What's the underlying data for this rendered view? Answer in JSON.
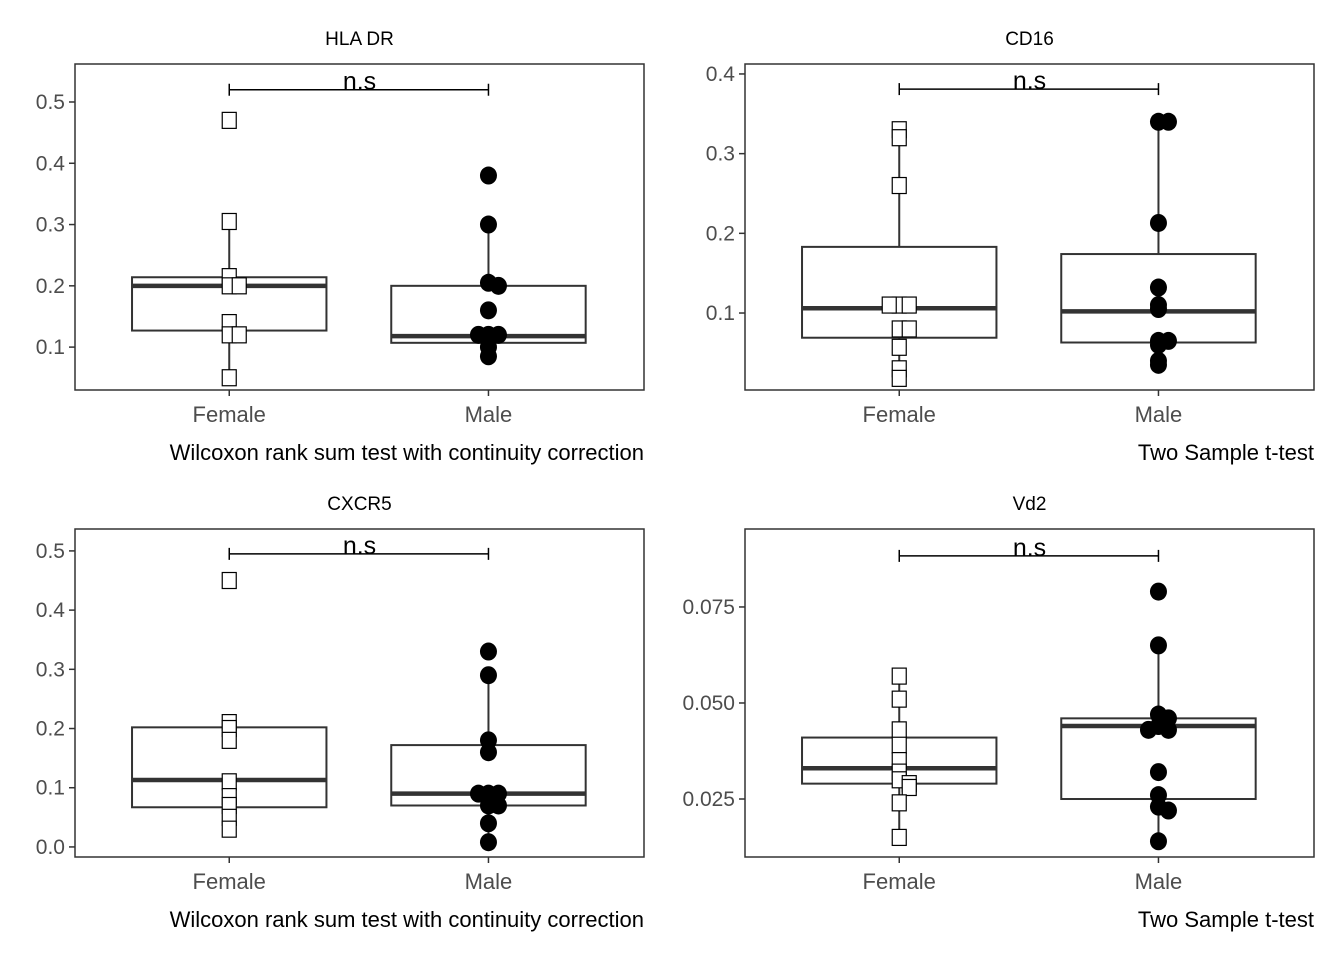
{
  "chart_data": [
    {
      "type": "box",
      "title": "HLA DR",
      "categories": [
        "Female",
        "Male"
      ],
      "ylim": [
        0.03,
        0.562
      ],
      "yticks": [
        0.1,
        0.2,
        0.3,
        0.4,
        0.5
      ],
      "ytick_labels": [
        "0.1",
        "0.2",
        "0.3",
        "0.4",
        "0.5"
      ],
      "test_label": "Wilcoxon rank sum test with continuity correction",
      "significance": {
        "label": "n.s",
        "y": 0.52
      },
      "series": [
        {
          "name": "Female",
          "shape": "square",
          "q1": 0.127,
          "median": 0.2,
          "q3": 0.214,
          "values": [
            0.47,
            0.305,
            0.215,
            0.2,
            0.2,
            0.14,
            0.12,
            0.12,
            0.05
          ]
        },
        {
          "name": "Male",
          "shape": "circle",
          "q1": 0.107,
          "median": 0.118,
          "q3": 0.2,
          "values": [
            0.38,
            0.3,
            0.205,
            0.2,
            0.16,
            0.12,
            0.12,
            0.12,
            0.1,
            0.085
          ]
        }
      ]
    },
    {
      "type": "box",
      "title": "CD16",
      "categories": [
        "Female",
        "Male"
      ],
      "ylim": [
        0.0034,
        0.4125
      ],
      "yticks": [
        0.1,
        0.2,
        0.3,
        0.4
      ],
      "ytick_labels": [
        "0.1",
        "0.2",
        "0.3",
        "0.4"
      ],
      "test_label": "Two Sample t-test",
      "significance": {
        "label": "n.s",
        "y": 0.381
      },
      "series": [
        {
          "name": "Female",
          "shape": "square",
          "q1": 0.069,
          "median": 0.106,
          "q3": 0.183,
          "values": [
            0.33,
            0.32,
            0.26,
            0.11,
            0.11,
            0.11,
            0.08,
            0.08,
            0.057,
            0.03,
            0.018
          ]
        },
        {
          "name": "Male",
          "shape": "circle",
          "q1": 0.063,
          "median": 0.102,
          "q3": 0.174,
          "values": [
            0.34,
            0.34,
            0.213,
            0.132,
            0.11,
            0.105,
            0.065,
            0.065,
            0.06,
            0.04,
            0.035
          ]
        }
      ]
    },
    {
      "type": "box",
      "title": "CXCR5",
      "categories": [
        "Female",
        "Male"
      ],
      "ylim": [
        -0.017,
        0.537
      ],
      "yticks": [
        0.0,
        0.1,
        0.2,
        0.3,
        0.4,
        0.5
      ],
      "ytick_labels": [
        "0.0",
        "0.1",
        "0.2",
        "0.3",
        "0.4",
        "0.5"
      ],
      "test_label": "Wilcoxon rank sum test with continuity correction",
      "significance": {
        "label": "n.s",
        "y": 0.495
      },
      "series": [
        {
          "name": "Female",
          "shape": "square",
          "q1": 0.067,
          "median": 0.113,
          "q3": 0.202,
          "values": [
            0.45,
            0.21,
            0.2,
            0.18,
            0.11,
            0.085,
            0.07,
            0.05,
            0.03
          ]
        },
        {
          "name": "Male",
          "shape": "circle",
          "q1": 0.07,
          "median": 0.09,
          "q3": 0.172,
          "values": [
            0.33,
            0.29,
            0.18,
            0.16,
            0.09,
            0.09,
            0.09,
            0.08,
            0.07,
            0.07,
            0.04,
            0.008
          ]
        }
      ]
    },
    {
      "type": "box",
      "title": "Vd2",
      "categories": [
        "Female",
        "Male"
      ],
      "ylim": [
        0.0099,
        0.0953
      ],
      "yticks": [
        0.025,
        0.05,
        0.075
      ],
      "ytick_labels": [
        "0.025",
        "0.050",
        "0.075"
      ],
      "test_label": "Two Sample t-test",
      "significance": {
        "label": "n.s",
        "y": 0.0883
      },
      "series": [
        {
          "name": "Female",
          "shape": "square",
          "q1": 0.029,
          "median": 0.033,
          "q3": 0.041,
          "values": [
            0.057,
            0.051,
            0.043,
            0.039,
            0.035,
            0.032,
            0.03,
            0.029,
            0.028,
            0.024,
            0.015
          ]
        },
        {
          "name": "Male",
          "shape": "circle",
          "q1": 0.025,
          "median": 0.044,
          "q3": 0.046,
          "values": [
            0.079,
            0.065,
            0.047,
            0.046,
            0.044,
            0.043,
            0.043,
            0.032,
            0.026,
            0.023,
            0.022,
            0.014
          ]
        }
      ]
    }
  ]
}
